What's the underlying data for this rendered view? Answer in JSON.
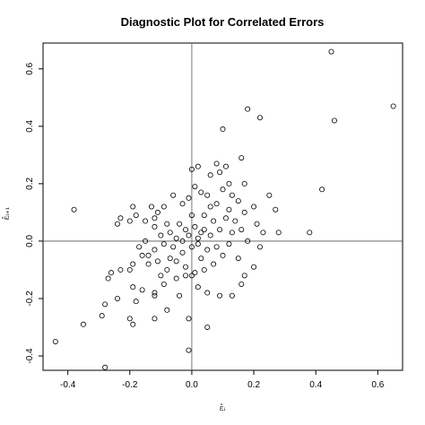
{
  "chart_data": {
    "type": "scatter",
    "title": "Diagnostic Plot for Correlated Errors",
    "xlabel": "ε̂ᵢ",
    "ylabel": "ε̂ᵢ₊₁",
    "xlim": [
      -0.48,
      0.68
    ],
    "ylim": [
      -0.45,
      0.69
    ],
    "xticks": [
      -0.4,
      -0.2,
      0.0,
      0.2,
      0.4,
      0.6
    ],
    "xtick_labels": [
      "-0.4",
      "-0.2",
      "0.0",
      "0.2",
      "0.4",
      "0.6"
    ],
    "yticks": [
      -0.4,
      -0.2,
      0.0,
      0.2,
      0.4,
      0.6
    ],
    "ytick_labels": [
      "-0.4",
      "-0.2",
      "0.0",
      "0.2",
      "0.4",
      "0.6"
    ],
    "reference_lines": {
      "x": 0,
      "y": 0
    },
    "grid": false,
    "points": [
      [
        0.45,
        0.66
      ],
      [
        0.65,
        0.47
      ],
      [
        0.46,
        0.42
      ],
      [
        0.18,
        0.46
      ],
      [
        0.22,
        0.43
      ],
      [
        0.1,
        0.39
      ],
      [
        0.16,
        0.29
      ],
      [
        0.42,
        0.18
      ],
      [
        0.08,
        0.27
      ],
      [
        0.11,
        0.26
      ],
      [
        0.02,
        0.26
      ],
      [
        0.0,
        0.25
      ],
      [
        0.06,
        0.23
      ],
      [
        0.09,
        0.24
      ],
      [
        0.12,
        0.2
      ],
      [
        0.17,
        0.2
      ],
      [
        0.25,
        0.16
      ],
      [
        0.27,
        0.11
      ],
      [
        0.2,
        0.12
      ],
      [
        0.15,
        0.14
      ],
      [
        0.13,
        0.16
      ],
      [
        0.1,
        0.18
      ],
      [
        0.05,
        0.16
      ],
      [
        0.03,
        0.17
      ],
      [
        0.01,
        0.19
      ],
      [
        -0.01,
        0.15
      ],
      [
        -0.03,
        0.13
      ],
      [
        -0.06,
        0.16
      ],
      [
        -0.09,
        0.12
      ],
      [
        -0.11,
        0.1
      ],
      [
        -0.13,
        0.12
      ],
      [
        -0.19,
        0.12
      ],
      [
        -0.18,
        0.09
      ],
      [
        -0.23,
        0.08
      ],
      [
        -0.2,
        0.07
      ],
      [
        -0.24,
        0.06
      ],
      [
        -0.38,
        0.11
      ],
      [
        -0.15,
        0.07
      ],
      [
        -0.12,
        0.08
      ],
      [
        -0.08,
        0.06
      ],
      [
        -0.04,
        0.06
      ],
      [
        0.01,
        0.05
      ],
      [
        0.04,
        0.09
      ],
      [
        0.07,
        0.07
      ],
      [
        0.11,
        0.08
      ],
      [
        0.14,
        0.07
      ],
      [
        0.17,
        0.1
      ],
      [
        0.21,
        0.06
      ],
      [
        0.23,
        0.03
      ],
      [
        0.28,
        0.03
      ],
      [
        0.38,
        0.03
      ],
      [
        0.16,
        0.04
      ],
      [
        0.13,
        0.03
      ],
      [
        0.09,
        0.04
      ],
      [
        0.06,
        0.02
      ],
      [
        0.03,
        0.03
      ],
      [
        0.02,
        0.01
      ],
      [
        -0.01,
        0.02
      ],
      [
        -0.02,
        0.04
      ],
      [
        -0.05,
        0.01
      ],
      [
        -0.07,
        0.03
      ],
      [
        -0.1,
        0.02
      ],
      [
        -0.12,
        0.05
      ],
      [
        -0.15,
        0.0
      ],
      [
        -0.17,
        -0.02
      ],
      [
        -0.16,
        -0.05
      ],
      [
        -0.12,
        -0.03
      ],
      [
        -0.09,
        -0.01
      ],
      [
        -0.06,
        -0.02
      ],
      [
        -0.03,
        -0.04
      ],
      [
        0.0,
        -0.02
      ],
      [
        0.02,
        -0.01
      ],
      [
        0.05,
        -0.03
      ],
      [
        0.08,
        -0.02
      ],
      [
        0.12,
        -0.01
      ],
      [
        0.18,
        0.0
      ],
      [
        0.22,
        -0.02
      ],
      [
        0.15,
        -0.06
      ],
      [
        0.1,
        -0.05
      ],
      [
        0.07,
        -0.08
      ],
      [
        0.04,
        -0.1
      ],
      [
        0.01,
        -0.11
      ],
      [
        -0.02,
        -0.09
      ],
      [
        -0.05,
        -0.07
      ],
      [
        -0.08,
        -0.1
      ],
      [
        -0.11,
        -0.07
      ],
      [
        -0.14,
        -0.05
      ],
      [
        -0.19,
        -0.08
      ],
      [
        -0.2,
        -0.1
      ],
      [
        -0.23,
        -0.1
      ],
      [
        -0.26,
        -0.11
      ],
      [
        -0.27,
        -0.13
      ],
      [
        -0.19,
        -0.16
      ],
      [
        -0.16,
        -0.17
      ],
      [
        -0.12,
        -0.18
      ],
      [
        -0.09,
        -0.15
      ],
      [
        -0.05,
        -0.13
      ],
      [
        -0.02,
        -0.12
      ],
      [
        0.02,
        -0.16
      ],
      [
        0.05,
        -0.18
      ],
      [
        0.09,
        -0.19
      ],
      [
        0.13,
        -0.19
      ],
      [
        0.17,
        -0.12
      ],
      [
        0.2,
        -0.09
      ],
      [
        0.16,
        -0.15
      ],
      [
        -0.04,
        -0.19
      ],
      [
        -0.12,
        -0.19
      ],
      [
        -0.18,
        -0.21
      ],
      [
        -0.24,
        -0.2
      ],
      [
        -0.28,
        -0.22
      ],
      [
        -0.29,
        -0.26
      ],
      [
        -0.2,
        -0.27
      ],
      [
        -0.19,
        -0.29
      ],
      [
        -0.12,
        -0.27
      ],
      [
        -0.08,
        -0.24
      ],
      [
        -0.01,
        -0.27
      ],
      [
        0.05,
        -0.3
      ],
      [
        -0.35,
        -0.29
      ],
      [
        -0.44,
        -0.35
      ],
      [
        -0.01,
        -0.38
      ],
      [
        -0.28,
        -0.44
      ],
      [
        0.0,
        -0.12
      ],
      [
        0.03,
        -0.06
      ],
      [
        -0.03,
        0.0
      ],
      [
        0.06,
        0.12
      ],
      [
        0.0,
        0.09
      ],
      [
        -0.07,
        -0.06
      ],
      [
        -0.1,
        -0.12
      ],
      [
        0.08,
        0.13
      ],
      [
        0.12,
        0.11
      ],
      [
        -0.14,
        -0.08
      ],
      [
        0.04,
        0.04
      ]
    ]
  }
}
